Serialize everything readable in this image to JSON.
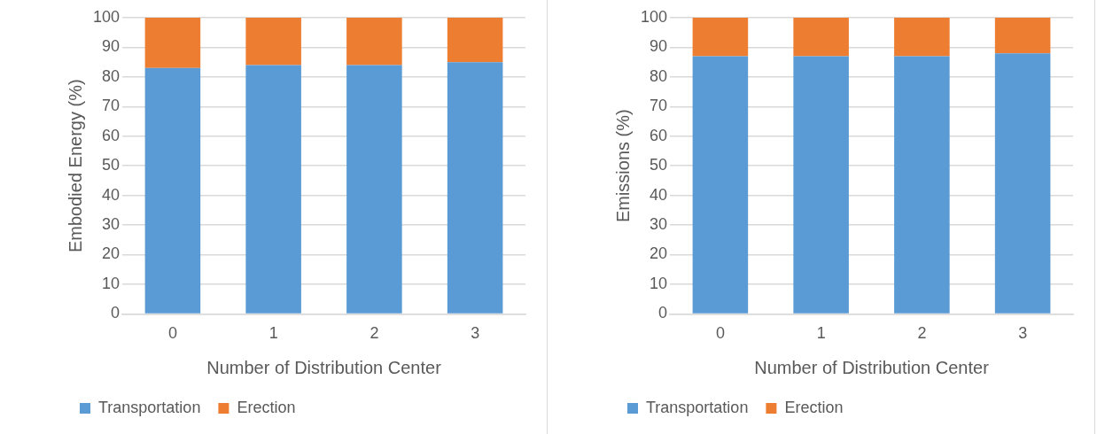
{
  "chart_data": [
    {
      "type": "bar",
      "stacked": true,
      "xlabel": "Number of Distribution Center",
      "ylabel": "Embodied Energy (%)",
      "categories": [
        "0",
        "1",
        "2",
        "3"
      ],
      "series": [
        {
          "name": "Transportation",
          "color": "#5b9bd5",
          "values": [
            83,
            84,
            84,
            85
          ]
        },
        {
          "name": "Erection",
          "color": "#ed7d31",
          "values": [
            17,
            16,
            16,
            15
          ]
        }
      ],
      "ylim": [
        0,
        100
      ],
      "yticks": [
        0,
        10,
        20,
        30,
        40,
        50,
        60,
        70,
        80,
        90,
        100
      ],
      "grid": "y",
      "legend": "bottom"
    },
    {
      "type": "bar",
      "stacked": true,
      "xlabel": "Number of Distribution Center",
      "ylabel": "Emissions (%)",
      "categories": [
        "0",
        "1",
        "2",
        "3"
      ],
      "series": [
        {
          "name": "Transportation",
          "color": "#5b9bd5",
          "values": [
            87,
            87,
            87,
            88
          ]
        },
        {
          "name": "Erection",
          "color": "#ed7d31",
          "values": [
            13,
            13,
            13,
            12
          ]
        }
      ],
      "ylim": [
        0,
        100
      ],
      "yticks": [
        0,
        10,
        20,
        30,
        40,
        50,
        60,
        70,
        80,
        90,
        100
      ],
      "grid": "y",
      "legend": "bottom"
    }
  ]
}
